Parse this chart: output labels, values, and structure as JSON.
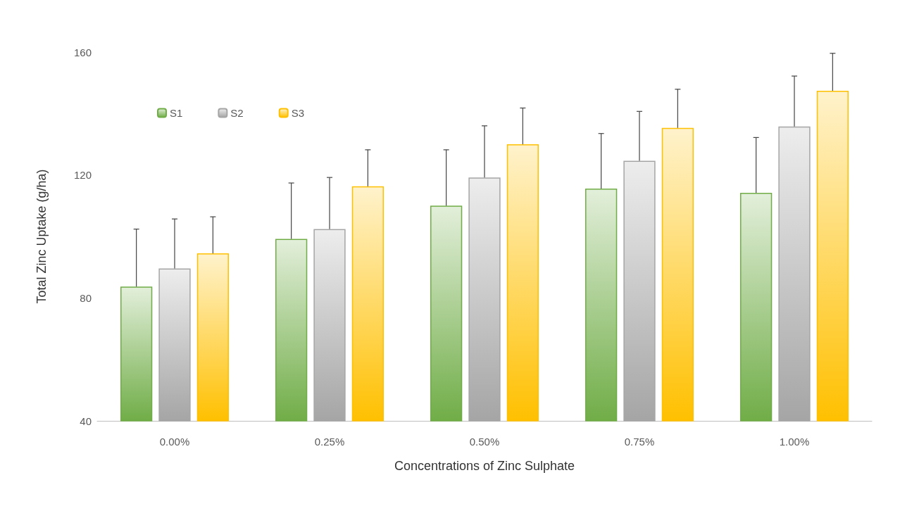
{
  "chart_data": {
    "type": "bar",
    "xlabel": "Concentrations of Zinc Sulphate",
    "ylabel": "Total Zinc Uptake (g/ha)",
    "categories": [
      "0.00%",
      "0.25%",
      "0.50%",
      "0.75%",
      "1.00%"
    ],
    "series": [
      {
        "name": "S1",
        "color": "#70ad47",
        "values": [
          83.7,
          99.2,
          110.0,
          115.6,
          114.2
        ],
        "errors": [
          [
            83.7,
            102.4
          ],
          [
            99.2,
            117.4
          ],
          [
            110.0,
            128.2
          ],
          [
            115.6,
            133.5
          ],
          [
            114.2,
            132.2
          ]
        ]
      },
      {
        "name": "S2",
        "color": "#a5a5a5",
        "values": [
          89.6,
          102.4,
          119.2,
          124.6,
          135.8
        ],
        "errors": [
          [
            89.6,
            105.7
          ],
          [
            102.4,
            119.2
          ],
          [
            119.2,
            136.0
          ],
          [
            124.6,
            140.7
          ],
          [
            135.8,
            152.2
          ]
        ]
      },
      {
        "name": "S3",
        "color": "#ffc000",
        "values": [
          94.5,
          116.3,
          130.0,
          135.3,
          147.4
        ],
        "errors": [
          [
            94.5,
            106.4
          ],
          [
            116.3,
            128.2
          ],
          [
            130.0,
            141.8
          ],
          [
            135.3,
            147.9
          ],
          [
            147.4,
            159.6
          ]
        ]
      }
    ],
    "ylim": [
      40,
      160
    ],
    "yticks": [
      40,
      80,
      120,
      160
    ],
    "grid": false,
    "legend": "top left"
  }
}
